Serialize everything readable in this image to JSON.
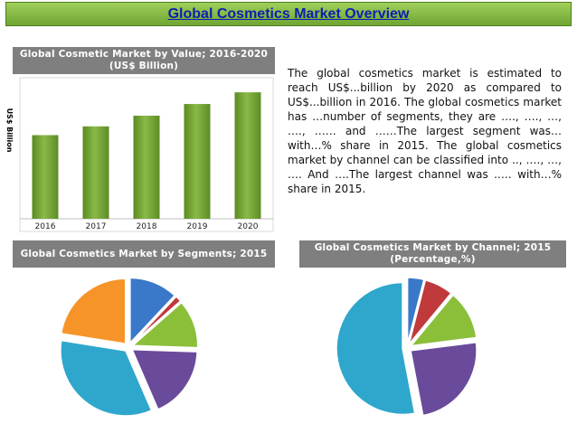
{
  "page_title": "Global Cosmetics Market Overview",
  "colors": {
    "title_text": "#0c1fb0",
    "title_bg": "#7fb83f",
    "panel_header_bg": "#7f7f7f",
    "bar": "#6b9a2e"
  },
  "description": "The global cosmetics market is estimated to reach US$...billion by 2020 as compared to US$...billion in 2016. The global cosmetics market has …number of segments, they are …., …., …, …., …… and ……The largest segment was… with…% share in 2015. The global cosmetics market by channel can be classified into .., …., …, …. And ….The largest channel was .…. with…% share in 2015.",
  "chart_data": [
    {
      "type": "bar",
      "title": "Global Cosmetic Market by Value; 2016-2020 (US$ Billion)",
      "ylabel": "US$ Billion",
      "xlabel": "",
      "categories": [
        "2016",
        "2017",
        "2018",
        "2019",
        "2020"
      ],
      "values": [
        86,
        95,
        106,
        118,
        130
      ],
      "ylim": [
        0,
        145
      ],
      "grid": false,
      "color": "#6b9a2e"
    },
    {
      "type": "pie",
      "title": "Global Cosmetics Market by Segments; 2015",
      "values": [
        12,
        1.5,
        12,
        18,
        34,
        22.5
      ],
      "colors": [
        "#3a78c9",
        "#c0393b",
        "#8bbf3a",
        "#6a4a9a",
        "#2fa7cc",
        "#f79429"
      ],
      "exploded": true
    },
    {
      "type": "pie",
      "title": "Global Cosmetics Market by Channel; 2015 (Percentage,%)",
      "values": [
        4,
        7,
        12,
        24,
        53
      ],
      "colors": [
        "#3a78c9",
        "#c0393b",
        "#8bbf3a",
        "#6a4a9a",
        "#2fa7cc"
      ],
      "exploded": true
    }
  ]
}
